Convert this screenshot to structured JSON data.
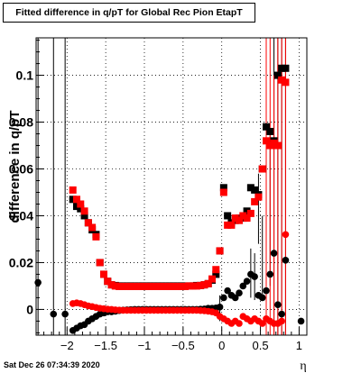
{
  "chart_data": {
    "type": "scatter",
    "title": "Fitted difference in q/pT for Global Rec Pion EtapT",
    "xlabel": "η",
    "ylabel": "difference in q/pT",
    "xlim": [
      -2.4,
      1.1
    ],
    "ylim": [
      -0.011,
      0.116
    ],
    "xticks": [
      -2,
      -1.5,
      -1,
      -0.5,
      0,
      0.5,
      1
    ],
    "xtick_labels": [
      "−2",
      "−1.5",
      "−1",
      "−0.5",
      "0",
      "0.5",
      "1"
    ],
    "yticks": [
      0,
      0.02,
      0.04,
      0.06,
      0.08,
      0.1
    ],
    "ytick_labels": [
      "0",
      "0.02",
      "0.04",
      "0.06",
      "0.08",
      "0.1"
    ],
    "grid": true,
    "series": [
      {
        "color": "#000000",
        "marker": "square",
        "points": [
          [
            -1.925,
            0.047
          ],
          [
            -1.875,
            0.044
          ],
          [
            -1.825,
            0.043
          ],
          [
            -1.775,
            0.04
          ],
          [
            -1.725,
            0.037
          ],
          [
            -1.675,
            0.034
          ],
          [
            -1.625,
            0.032
          ],
          [
            -1.575,
            0.02
          ],
          [
            -1.525,
            0.015
          ],
          [
            -1.475,
            0.012
          ],
          [
            -1.425,
            0.0105
          ],
          [
            -1.375,
            0.0102
          ],
          [
            -1.325,
            0.01
          ],
          [
            -1.275,
            0.01
          ],
          [
            -1.225,
            0.01
          ],
          [
            -1.175,
            0.01
          ],
          [
            -1.125,
            0.01
          ],
          [
            -1.075,
            0.01
          ],
          [
            -1.025,
            0.01
          ],
          [
            -0.975,
            0.01
          ],
          [
            -0.925,
            0.01
          ],
          [
            -0.875,
            0.01
          ],
          [
            -0.825,
            0.01
          ],
          [
            -0.775,
            0.01
          ],
          [
            -0.725,
            0.01
          ],
          [
            -0.675,
            0.01
          ],
          [
            -0.625,
            0.01
          ],
          [
            -0.575,
            0.01
          ],
          [
            -0.525,
            0.01
          ],
          [
            -0.475,
            0.01
          ],
          [
            -0.425,
            0.01
          ],
          [
            -0.375,
            0.01
          ],
          [
            -0.325,
            0.0102
          ],
          [
            -0.275,
            0.0102
          ],
          [
            -0.225,
            0.0105
          ],
          [
            -0.175,
            0.011
          ],
          [
            -0.125,
            0.0125
          ],
          [
            -0.075,
            0.015
          ],
          [
            -0.025,
            0.025
          ],
          [
            0.025,
            0.052
          ],
          [
            0.075,
            0.04
          ],
          [
            0.125,
            0.037
          ],
          [
            0.175,
            0.038
          ],
          [
            0.225,
            0.039
          ],
          [
            0.275,
            0.039
          ],
          [
            0.325,
            0.042
          ],
          [
            0.375,
            0.052
          ],
          [
            0.425,
            0.051
          ],
          [
            0.475,
            0.049
          ],
          [
            0.525,
            0.06
          ],
          [
            0.575,
            0.078
          ],
          [
            0.625,
            0.076
          ],
          [
            0.675,
            0.072
          ],
          [
            0.725,
            0.1
          ],
          [
            0.775,
            0.103
          ],
          [
            0.825,
            0.103
          ]
        ]
      },
      {
        "color": "#ff0000",
        "marker": "square",
        "points": [
          [
            -1.925,
            0.051
          ],
          [
            -1.875,
            0.047
          ],
          [
            -1.825,
            0.045
          ],
          [
            -1.775,
            0.042
          ],
          [
            -1.725,
            0.037
          ],
          [
            -1.675,
            0.035
          ],
          [
            -1.625,
            0.031
          ],
          [
            -1.575,
            0.02
          ],
          [
            -1.525,
            0.015
          ],
          [
            -1.475,
            0.012
          ],
          [
            -1.425,
            0.0105
          ],
          [
            -1.375,
            0.01
          ],
          [
            -1.325,
            0.0098
          ],
          [
            -1.275,
            0.0098
          ],
          [
            -1.225,
            0.0098
          ],
          [
            -1.175,
            0.0098
          ],
          [
            -1.125,
            0.0098
          ],
          [
            -1.075,
            0.0098
          ],
          [
            -1.025,
            0.0098
          ],
          [
            -0.975,
            0.0098
          ],
          [
            -0.925,
            0.0098
          ],
          [
            -0.875,
            0.0098
          ],
          [
            -0.825,
            0.0098
          ],
          [
            -0.775,
            0.0098
          ],
          [
            -0.725,
            0.0098
          ],
          [
            -0.675,
            0.0098
          ],
          [
            -0.625,
            0.0098
          ],
          [
            -0.575,
            0.0098
          ],
          [
            -0.525,
            0.0098
          ],
          [
            -0.475,
            0.0098
          ],
          [
            -0.425,
            0.01
          ],
          [
            -0.375,
            0.01
          ],
          [
            -0.325,
            0.01
          ],
          [
            -0.275,
            0.0102
          ],
          [
            -0.225,
            0.0105
          ],
          [
            -0.175,
            0.011
          ],
          [
            -0.125,
            0.013
          ],
          [
            -0.075,
            0.017
          ],
          [
            -0.025,
            0.025
          ],
          [
            0.025,
            0.05
          ],
          [
            0.075,
            0.036
          ],
          [
            0.125,
            0.036
          ],
          [
            0.175,
            0.039
          ],
          [
            0.225,
            0.038
          ],
          [
            0.275,
            0.04
          ],
          [
            0.325,
            0.039
          ],
          [
            0.375,
            0.041
          ],
          [
            0.425,
            0.046
          ],
          [
            0.475,
            0.048
          ],
          [
            0.525,
            0.06
          ],
          [
            0.575,
            0.072
          ],
          [
            0.625,
            0.07
          ],
          [
            0.675,
            0.071
          ],
          [
            0.725,
            0.07
          ],
          [
            0.775,
            0.098
          ],
          [
            0.825,
            0.097
          ]
        ]
      },
      {
        "color": "#000000",
        "marker": "circle",
        "points": [
          [
            -2.375,
            0.0115
          ],
          [
            -2.175,
            -0.002
          ],
          [
            -2.025,
            -0.002
          ],
          [
            -1.925,
            -0.009
          ],
          [
            -1.875,
            -0.008
          ],
          [
            -1.825,
            -0.007
          ],
          [
            -1.775,
            -0.0065
          ],
          [
            -1.725,
            -0.005
          ],
          [
            -1.675,
            -0.004
          ],
          [
            -1.625,
            -0.003
          ],
          [
            -1.575,
            -0.002
          ],
          [
            -1.525,
            -0.0015
          ],
          [
            -1.475,
            -0.001
          ],
          [
            -1.425,
            -0.001
          ],
          [
            -1.375,
            -0.0008
          ],
          [
            -1.325,
            -0.0005
          ],
          [
            -1.275,
            -0.0003
          ],
          [
            -1.225,
            -0.0002
          ],
          [
            -1.175,
            -0.0001
          ],
          [
            -1.125,
            0.0
          ],
          [
            -1.075,
            0.0
          ],
          [
            -1.025,
            0.0
          ],
          [
            -0.975,
            0.0
          ],
          [
            -0.925,
            0.0
          ],
          [
            -0.875,
            0.0
          ],
          [
            -0.825,
            0.0
          ],
          [
            -0.775,
            0.0
          ],
          [
            -0.725,
            0.0
          ],
          [
            -0.675,
            0.0
          ],
          [
            -0.625,
            0.0
          ],
          [
            -0.575,
            0.0
          ],
          [
            -0.525,
            0.0
          ],
          [
            -0.475,
            0.0
          ],
          [
            -0.425,
            0.0
          ],
          [
            -0.375,
            0.0
          ],
          [
            -0.325,
            0.0
          ],
          [
            -0.275,
            0.0001
          ],
          [
            -0.225,
            0.0002
          ],
          [
            -0.175,
            0.0005
          ],
          [
            -0.125,
            0.0005
          ],
          [
            -0.075,
            0.0006
          ],
          [
            -0.025,
            0.001
          ],
          [
            0.025,
            0.005
          ],
          [
            0.075,
            0.008
          ],
          [
            0.125,
            0.006
          ],
          [
            0.175,
            0.005
          ],
          [
            0.225,
            0.007
          ],
          [
            0.275,
            0.01
          ],
          [
            0.325,
            0.012
          ],
          [
            0.375,
            0.015
          ],
          [
            0.425,
            0.014
          ],
          [
            0.475,
            0.006
          ],
          [
            0.525,
            0.005
          ],
          [
            0.575,
            0.008
          ],
          [
            0.625,
            0.015
          ],
          [
            0.675,
            0.024
          ],
          [
            0.725,
            0.002
          ],
          [
            0.775,
            -0.002
          ],
          [
            0.825,
            0.021
          ],
          [
            1.025,
            -0.005
          ]
        ]
      },
      {
        "color": "#ff0000",
        "marker": "circle",
        "points": [
          [
            -1.925,
            0.0025
          ],
          [
            -1.875,
            0.0028
          ],
          [
            -1.825,
            0.0025
          ],
          [
            -1.775,
            0.002
          ],
          [
            -1.725,
            0.0015
          ],
          [
            -1.675,
            0.0012
          ],
          [
            -1.625,
            0.0008
          ],
          [
            -1.575,
            0.0005
          ],
          [
            -1.525,
            0.0003
          ],
          [
            -1.475,
            0.0001
          ],
          [
            -1.425,
            0.0
          ],
          [
            -1.375,
            -0.0002
          ],
          [
            -1.325,
            -0.0003
          ],
          [
            -1.275,
            -0.0004
          ],
          [
            -1.225,
            -0.0004
          ],
          [
            -1.175,
            -0.0004
          ],
          [
            -1.125,
            -0.0004
          ],
          [
            -1.075,
            -0.0004
          ],
          [
            -1.025,
            -0.0004
          ],
          [
            -0.975,
            -0.0004
          ],
          [
            -0.925,
            -0.0004
          ],
          [
            -0.875,
            -0.0004
          ],
          [
            -0.825,
            -0.0004
          ],
          [
            -0.775,
            -0.0004
          ],
          [
            -0.725,
            -0.0004
          ],
          [
            -0.675,
            -0.0004
          ],
          [
            -0.625,
            -0.0004
          ],
          [
            -0.575,
            -0.0004
          ],
          [
            -0.525,
            -0.0004
          ],
          [
            -0.475,
            -0.0004
          ],
          [
            -0.425,
            -0.0004
          ],
          [
            -0.375,
            -0.0004
          ],
          [
            -0.325,
            -0.0004
          ],
          [
            -0.275,
            -0.0005
          ],
          [
            -0.225,
            -0.0006
          ],
          [
            -0.175,
            -0.0008
          ],
          [
            -0.125,
            -0.001
          ],
          [
            -0.075,
            -0.0015
          ],
          [
            -0.025,
            -0.003
          ],
          [
            0.025,
            -0.004
          ],
          [
            0.075,
            -0.005
          ],
          [
            0.125,
            -0.006
          ],
          [
            0.175,
            -0.005
          ],
          [
            0.225,
            -0.006
          ],
          [
            0.275,
            -0.003
          ],
          [
            0.325,
            -0.004
          ],
          [
            0.375,
            -0.005
          ],
          [
            0.425,
            -0.004
          ],
          [
            0.475,
            -0.005
          ],
          [
            0.525,
            -0.006
          ],
          [
            0.575,
            -0.004
          ],
          [
            0.625,
            -0.005
          ],
          [
            0.675,
            -0.006
          ],
          [
            0.725,
            -0.006
          ],
          [
            0.775,
            -0.005
          ],
          [
            0.825,
            0.032
          ]
        ]
      }
    ],
    "error_bars": [
      {
        "x": -2.375,
        "low": -0.011,
        "high": 0.116,
        "color": "#000000"
      },
      {
        "x": -2.175,
        "low": -0.011,
        "high": 0.116,
        "color": "#000000"
      },
      {
        "x": -2.025,
        "low": -0.011,
        "high": 0.116,
        "color": "#000000"
      },
      {
        "x": -0.025,
        "low": -0.005,
        "high": 0.006,
        "color": "#000000"
      },
      {
        "x": 0.375,
        "low": 0.005,
        "high": 0.026,
        "color": "#000000"
      },
      {
        "x": 0.425,
        "low": 0.004,
        "high": 0.024,
        "color": "#000000"
      },
      {
        "x": 0.475,
        "low": 0.028,
        "high": 0.058,
        "color": "#000000"
      },
      {
        "x": 0.525,
        "low": 0.004,
        "high": 0.04,
        "color": "#000000"
      },
      {
        "x": 0.575,
        "low": -0.006,
        "high": 0.06,
        "color": "#000000"
      },
      {
        "x": 0.625,
        "low": 0.01,
        "high": 0.075,
        "color": "#000000"
      },
      {
        "x": 0.675,
        "low": -0.011,
        "high": 0.116,
        "color": "#000000"
      },
      {
        "x": 0.725,
        "low": -0.011,
        "high": 0.116,
        "color": "#000000"
      },
      {
        "x": 0.775,
        "low": -0.011,
        "high": 0.116,
        "color": "#000000"
      },
      {
        "x": 0.825,
        "low": -0.011,
        "high": 0.116,
        "color": "#000000"
      },
      {
        "x": 0.575,
        "low": -0.011,
        "high": 0.116,
        "color": "#ff0000"
      },
      {
        "x": 0.625,
        "low": -0.011,
        "high": 0.116,
        "color": "#ff0000"
      },
      {
        "x": 0.675,
        "low": -0.011,
        "high": 0.1,
        "color": "#ff0000"
      },
      {
        "x": 0.725,
        "low": -0.011,
        "high": 0.116,
        "color": "#ff0000"
      },
      {
        "x": 0.775,
        "low": -0.011,
        "high": 0.116,
        "color": "#ff0000"
      },
      {
        "x": 0.825,
        "low": -0.011,
        "high": 0.116,
        "color": "#ff0000"
      }
    ]
  },
  "footer": {
    "date": "Sat Dec 26 07:34:39 2020"
  }
}
